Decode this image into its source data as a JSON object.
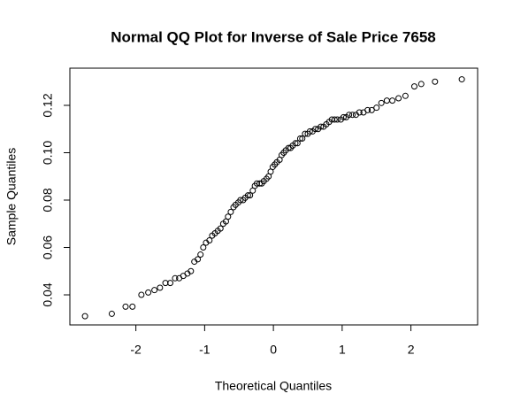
{
  "chart_data": {
    "type": "scatter",
    "title": "Normal QQ Plot for Inverse of Sale Price 7658",
    "x_label": "Theoretical Quantiles",
    "y_label": "Sample Quantiles",
    "xlim": [
      -2.96,
      2.97
    ],
    "ylim": [
      0.0273,
      0.1357
    ],
    "xticks": [
      -2,
      -1,
      0,
      1,
      2
    ],
    "yticks": [
      0.04,
      0.06,
      0.08,
      {
        "value": 0.1,
        "label": "0.10"
      },
      0.12
    ],
    "color": "#000000",
    "x": [
      -2.74,
      -2.35,
      -2.15,
      -2.05,
      -1.92,
      -1.82,
      -1.73,
      -1.65,
      -1.57,
      -1.5,
      -1.43,
      -1.37,
      -1.31,
      -1.25,
      -1.2,
      -1.15,
      -1.1,
      -1.06,
      -1.02,
      -0.98,
      -0.93,
      -0.89,
      -0.85,
      -0.81,
      -0.77,
      -0.73,
      -0.69,
      -0.66,
      -0.62,
      -0.58,
      -0.55,
      -0.51,
      -0.48,
      -0.44,
      -0.41,
      -0.37,
      -0.34,
      -0.3,
      -0.27,
      -0.24,
      -0.2,
      -0.17,
      -0.14,
      -0.1,
      -0.07,
      -0.04,
      -0.01,
      0.02,
      0.05,
      0.09,
      0.12,
      0.15,
      0.18,
      0.22,
      0.25,
      0.28,
      0.32,
      0.35,
      0.39,
      0.42,
      0.46,
      0.5,
      0.53,
      0.57,
      0.61,
      0.65,
      0.69,
      0.73,
      0.77,
      0.81,
      0.85,
      0.89,
      0.93,
      0.98,
      1.02,
      1.06,
      1.1,
      1.15,
      1.2,
      1.25,
      1.31,
      1.37,
      1.43,
      1.5,
      1.57,
      1.65,
      1.73,
      1.82,
      1.92,
      2.05,
      2.15,
      2.35,
      2.74
    ],
    "values": [
      0.031,
      0.032,
      0.035,
      0.035,
      0.04,
      0.041,
      0.042,
      0.043,
      0.045,
      0.045,
      0.047,
      0.047,
      0.048,
      0.049,
      0.05,
      0.054,
      0.055,
      0.057,
      0.06,
      0.062,
      0.063,
      0.065,
      0.066,
      0.067,
      0.068,
      0.07,
      0.071,
      0.073,
      0.075,
      0.077,
      0.078,
      0.079,
      0.08,
      0.08,
      0.081,
      0.082,
      0.082,
      0.084,
      0.086,
      0.087,
      0.087,
      0.087,
      0.088,
      0.089,
      0.09,
      0.092,
      0.094,
      0.095,
      0.096,
      0.097,
      0.099,
      0.1,
      0.101,
      0.102,
      0.102,
      0.103,
      0.104,
      0.104,
      0.106,
      0.106,
      0.108,
      0.108,
      0.109,
      0.109,
      0.11,
      0.11,
      0.111,
      0.111,
      0.112,
      0.113,
      0.114,
      0.114,
      0.114,
      0.114,
      0.115,
      0.115,
      0.116,
      0.116,
      0.116,
      0.117,
      0.117,
      0.118,
      0.118,
      0.119,
      0.121,
      0.122,
      0.122,
      0.123,
      0.124,
      0.128,
      0.129,
      0.13,
      0.131
    ]
  }
}
